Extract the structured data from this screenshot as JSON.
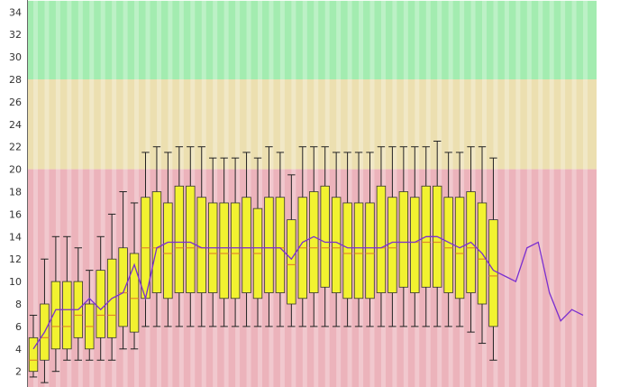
{
  "chart_data": {
    "type": "box",
    "title": "",
    "xlabel": "",
    "ylabel": "",
    "ylim": [
      0,
      35
    ],
    "ytick_labels": [
      "2",
      "4",
      "6",
      "8",
      "10",
      "12",
      "14",
      "16",
      "18",
      "20",
      "22",
      "24",
      "26",
      "28",
      "30",
      "32",
      "34"
    ],
    "grid": false,
    "zones": [
      {
        "name": "green",
        "from": 28,
        "to": 35,
        "color": "#a3ecb0"
      },
      {
        "name": "yellow",
        "from": 20,
        "to": 28,
        "color": "#ecdfb0"
      },
      {
        "name": "red",
        "from": 0,
        "to": 20,
        "color": "#ecb3bb"
      }
    ],
    "box_series": {
      "box_color": "#f2f230",
      "median_color": "#e08a2a",
      "whisker_color": "#222222",
      "boxes": [
        {
          "x": 1,
          "min": 1.5,
          "q1": 2.0,
          "median": 3.0,
          "q3": 5.0,
          "max": 7.0
        },
        {
          "x": 2,
          "min": 1.0,
          "q1": 3.0,
          "median": 5.0,
          "q3": 8.0,
          "max": 12.0
        },
        {
          "x": 3,
          "min": 2.0,
          "q1": 4.0,
          "median": 6.0,
          "q3": 10.0,
          "max": 14.0
        },
        {
          "x": 4,
          "min": 3.0,
          "q1": 4.0,
          "median": 6.0,
          "q3": 10.0,
          "max": 14.0
        },
        {
          "x": 5,
          "min": 3.0,
          "q1": 5.0,
          "median": 7.0,
          "q3": 10.0,
          "max": 13.0
        },
        {
          "x": 6,
          "min": 3.0,
          "q1": 4.0,
          "median": 6.0,
          "q3": 8.0,
          "max": 11.0
        },
        {
          "x": 7,
          "min": 3.0,
          "q1": 5.0,
          "median": 7.0,
          "q3": 11.0,
          "max": 14.0
        },
        {
          "x": 8,
          "min": 3.0,
          "q1": 5.0,
          "median": 7.0,
          "q3": 12.0,
          "max": 16.0
        },
        {
          "x": 9,
          "min": 4.0,
          "q1": 6.0,
          "median": 9.0,
          "q3": 13.0,
          "max": 18.0
        },
        {
          "x": 10,
          "min": 4.0,
          "q1": 5.5,
          "median": 8.5,
          "q3": 12.5,
          "max": 17.0
        },
        {
          "x": 11,
          "min": 6.0,
          "q1": 8.5,
          "median": 13.0,
          "q3": 17.5,
          "max": 21.5
        },
        {
          "x": 12,
          "min": 6.0,
          "q1": 9.0,
          "median": 13.0,
          "q3": 18.0,
          "max": 22.0
        },
        {
          "x": 13,
          "min": 6.0,
          "q1": 8.5,
          "median": 12.5,
          "q3": 17.0,
          "max": 21.5
        },
        {
          "x": 14,
          "min": 6.0,
          "q1": 9.0,
          "median": 13.0,
          "q3": 18.5,
          "max": 22.0
        },
        {
          "x": 15,
          "min": 6.0,
          "q1": 9.0,
          "median": 13.0,
          "q3": 18.5,
          "max": 22.0
        },
        {
          "x": 16,
          "min": 6.0,
          "q1": 9.0,
          "median": 13.0,
          "q3": 17.5,
          "max": 22.0
        },
        {
          "x": 17,
          "min": 6.0,
          "q1": 9.0,
          "median": 12.5,
          "q3": 17.0,
          "max": 21.0
        },
        {
          "x": 18,
          "min": 6.0,
          "q1": 8.5,
          "median": 12.5,
          "q3": 17.0,
          "max": 21.0
        },
        {
          "x": 19,
          "min": 6.0,
          "q1": 8.5,
          "median": 12.5,
          "q3": 17.0,
          "max": 21.0
        },
        {
          "x": 20,
          "min": 6.0,
          "q1": 9.0,
          "median": 13.0,
          "q3": 17.5,
          "max": 21.5
        },
        {
          "x": 21,
          "min": 6.0,
          "q1": 8.5,
          "median": 12.5,
          "q3": 16.5,
          "max": 21.0
        },
        {
          "x": 22,
          "min": 6.0,
          "q1": 9.0,
          "median": 13.0,
          "q3": 17.5,
          "max": 22.0
        },
        {
          "x": 23,
          "min": 6.0,
          "q1": 9.0,
          "median": 13.0,
          "q3": 17.5,
          "max": 21.5
        },
        {
          "x": 24,
          "min": 6.0,
          "q1": 8.0,
          "median": 11.5,
          "q3": 15.5,
          "max": 19.5
        },
        {
          "x": 25,
          "min": 6.0,
          "q1": 8.5,
          "median": 13.0,
          "q3": 17.5,
          "max": 22.0
        },
        {
          "x": 26,
          "min": 6.0,
          "q1": 9.0,
          "median": 13.0,
          "q3": 18.0,
          "max": 22.0
        },
        {
          "x": 27,
          "min": 6.0,
          "q1": 9.5,
          "median": 13.0,
          "q3": 18.5,
          "max": 22.0
        },
        {
          "x": 28,
          "min": 6.0,
          "q1": 9.0,
          "median": 13.0,
          "q3": 17.5,
          "max": 21.5
        },
        {
          "x": 29,
          "min": 6.0,
          "q1": 8.5,
          "median": 12.5,
          "q3": 17.0,
          "max": 21.5
        },
        {
          "x": 30,
          "min": 6.0,
          "q1": 8.5,
          "median": 12.5,
          "q3": 17.0,
          "max": 21.5
        },
        {
          "x": 31,
          "min": 6.0,
          "q1": 8.5,
          "median": 12.5,
          "q3": 17.0,
          "max": 21.5
        },
        {
          "x": 32,
          "min": 6.0,
          "q1": 9.0,
          "median": 13.0,
          "q3": 18.5,
          "max": 22.0
        },
        {
          "x": 33,
          "min": 6.0,
          "q1": 9.0,
          "median": 13.0,
          "q3": 17.5,
          "max": 22.0
        },
        {
          "x": 34,
          "min": 6.0,
          "q1": 9.5,
          "median": 13.5,
          "q3": 18.0,
          "max": 22.0
        },
        {
          "x": 35,
          "min": 6.0,
          "q1": 9.0,
          "median": 13.5,
          "q3": 17.5,
          "max": 22.0
        },
        {
          "x": 36,
          "min": 6.0,
          "q1": 9.5,
          "median": 13.5,
          "q3": 18.5,
          "max": 22.0
        },
        {
          "x": 37,
          "min": 6.0,
          "q1": 9.5,
          "median": 13.5,
          "q3": 18.5,
          "max": 22.5
        },
        {
          "x": 38,
          "min": 6.0,
          "q1": 9.0,
          "median": 13.0,
          "q3": 17.5,
          "max": 21.5
        },
        {
          "x": 39,
          "min": 6.0,
          "q1": 8.5,
          "median": 12.5,
          "q3": 17.5,
          "max": 21.5
        },
        {
          "x": 40,
          "min": 5.5,
          "q1": 9.0,
          "median": 13.0,
          "q3": 18.0,
          "max": 22.0
        },
        {
          "x": 41,
          "min": 4.5,
          "q1": 8.0,
          "median": 12.0,
          "q3": 17.0,
          "max": 22.0
        },
        {
          "x": 42,
          "min": 3.0,
          "q1": 6.0,
          "median": 10.5,
          "q3": 15.5,
          "max": 21.0
        }
      ]
    },
    "line_series": {
      "color": "#7a2fd0",
      "x": [
        1,
        2,
        3,
        4,
        5,
        6,
        7,
        8,
        9,
        10,
        11,
        12,
        13,
        14,
        15,
        16,
        17,
        18,
        19,
        20,
        21,
        22,
        23,
        24,
        25,
        26,
        27,
        28,
        29,
        30,
        31,
        32,
        33,
        34,
        35,
        36,
        37,
        38,
        39,
        40,
        41,
        42,
        43,
        44,
        45,
        46,
        47,
        48,
        49,
        50
      ],
      "values": [
        4.0,
        5.5,
        7.5,
        7.5,
        7.5,
        8.5,
        7.5,
        8.5,
        9.0,
        11.5,
        8.5,
        13.0,
        13.5,
        13.5,
        13.5,
        13.0,
        13.0,
        13.0,
        13.0,
        13.0,
        13.0,
        13.0,
        13.0,
        12.0,
        13.5,
        14.0,
        13.5,
        13.5,
        13.0,
        13.0,
        13.0,
        13.0,
        13.5,
        13.5,
        13.5,
        14.0,
        14.0,
        13.5,
        13.0,
        13.5,
        12.5,
        11.0,
        10.5,
        10.0,
        13.0,
        13.5,
        9.0,
        6.5,
        7.5,
        7.0
      ]
    }
  }
}
